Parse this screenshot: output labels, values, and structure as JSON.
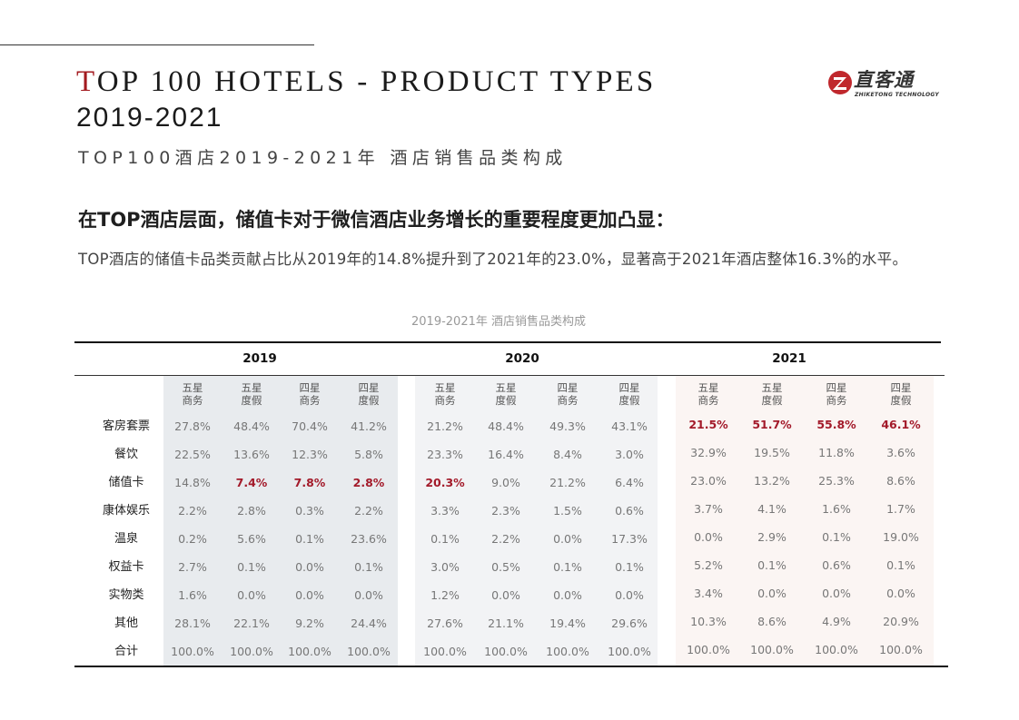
{
  "header": {
    "title_first_letter": "T",
    "title_rest": "OP 100 HOTELS - PRODUCT TYPES",
    "title_years": "2019-2021",
    "title_cn": "TOP100酒店2019-2021年 酒店销售品类构成"
  },
  "logo": {
    "text_cn": "直客通",
    "text_en": "ZHIKETONG TECHNOLOGY",
    "icon": "z-logo-icon",
    "accent_color": "#c0282d"
  },
  "headline": "在TOP酒店层面，储值卡对于微信酒店业务增长的重要程度更加凸显：",
  "body": "TOP酒店的储值卡品类贡献占比从2019年的14.8%提升到了2021年的23.0%，显著高于2021年酒店整体16.3%的水平。",
  "table": {
    "caption": "2019-2021年 酒店销售品类构成",
    "years": [
      "2019",
      "2020",
      "2021"
    ],
    "columns": [
      [
        "五星",
        "商务"
      ],
      [
        "五星",
        "度假"
      ],
      [
        "四星",
        "商务"
      ],
      [
        "四星",
        "度假"
      ]
    ],
    "rows": [
      {
        "label": "客房套票",
        "values": [
          [
            "27.8%",
            "48.4%",
            "70.4%",
            "41.2%"
          ],
          [
            "21.2%",
            "48.4%",
            "49.3%",
            "43.1%"
          ],
          [
            "21.5%",
            "51.7%",
            "55.8%",
            "46.1%"
          ]
        ]
      },
      {
        "label": "餐饮",
        "values": [
          [
            "22.5%",
            "13.6%",
            "12.3%",
            "5.8%"
          ],
          [
            "23.3%",
            "16.4%",
            "8.4%",
            "3.0%"
          ],
          [
            "32.9%",
            "19.5%",
            "11.8%",
            "3.6%"
          ]
        ]
      },
      {
        "label": "储值卡",
        "values": [
          [
            "14.8%",
            "7.4%",
            "7.8%",
            "2.8%"
          ],
          [
            "20.3%",
            "9.0%",
            "21.2%",
            "6.4%"
          ],
          [
            "23.0%",
            "13.2%",
            "25.3%",
            "8.6%"
          ]
        ]
      },
      {
        "label": "康体娱乐",
        "values": [
          [
            "2.2%",
            "2.8%",
            "0.3%",
            "2.2%"
          ],
          [
            "3.3%",
            "2.3%",
            "1.5%",
            "0.6%"
          ],
          [
            "3.7%",
            "4.1%",
            "1.6%",
            "1.7%"
          ]
        ]
      },
      {
        "label": "温泉",
        "values": [
          [
            "0.2%",
            "5.6%",
            "0.1%",
            "23.6%"
          ],
          [
            "0.1%",
            "2.2%",
            "0.0%",
            "17.3%"
          ],
          [
            "0.0%",
            "2.9%",
            "0.1%",
            "19.0%"
          ]
        ]
      },
      {
        "label": "权益卡",
        "values": [
          [
            "2.7%",
            "0.1%",
            "0.0%",
            "0.1%"
          ],
          [
            "3.0%",
            "0.5%",
            "0.1%",
            "0.1%"
          ],
          [
            "5.2%",
            "0.1%",
            "0.6%",
            "0.1%"
          ]
        ]
      },
      {
        "label": "实物类",
        "values": [
          [
            "1.6%",
            "0.0%",
            "0.0%",
            "0.0%"
          ],
          [
            "1.2%",
            "0.0%",
            "0.0%",
            "0.0%"
          ],
          [
            "3.4%",
            "0.0%",
            "0.0%",
            "0.0%"
          ]
        ]
      },
      {
        "label": "其他",
        "values": [
          [
            "28.1%",
            "22.1%",
            "9.2%",
            "24.4%"
          ],
          [
            "27.6%",
            "21.1%",
            "19.4%",
            "29.6%"
          ],
          [
            "10.3%",
            "8.6%",
            "4.9%",
            "20.9%"
          ]
        ]
      },
      {
        "label": "合计",
        "values": [
          [
            "100.0%",
            "100.0%",
            "100.0%",
            "100.0%"
          ],
          [
            "100.0%",
            "100.0%",
            "100.0%",
            "100.0%"
          ],
          [
            "100.0%",
            "100.0%",
            "100.0%",
            "100.0%"
          ]
        ]
      }
    ],
    "highlighted": [
      [
        0,
        2,
        1
      ],
      [
        0,
        2,
        2
      ],
      [
        0,
        2,
        3
      ],
      [
        1,
        2,
        0
      ],
      [
        2,
        0,
        0
      ],
      [
        2,
        0,
        1
      ],
      [
        2,
        0,
        2
      ],
      [
        2,
        0,
        3
      ]
    ],
    "highlight_color": "#a31a2a"
  }
}
